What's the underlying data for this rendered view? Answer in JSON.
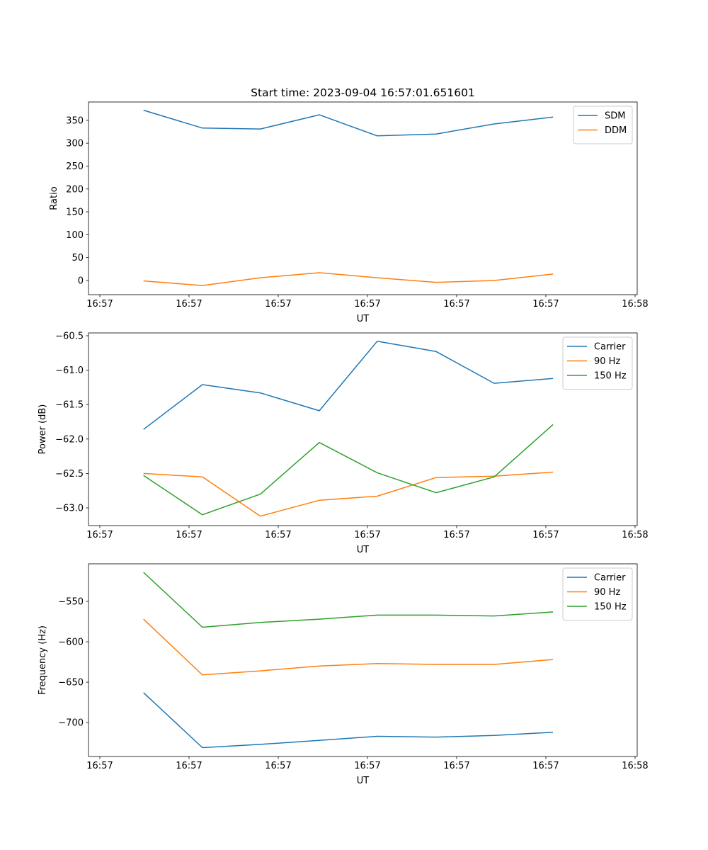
{
  "chart_data": [
    {
      "type": "line",
      "title": "Start time: 2023-09-04 16:57:01.651601",
      "xlabel": "UT",
      "ylabel": "Ratio",
      "x": [
        4.9,
        11.5,
        18.0,
        24.6,
        31.1,
        37.7,
        44.2,
        50.8
      ],
      "xlim": [
        -1.27,
        60.24
      ],
      "xticks": [
        0,
        10,
        20,
        30,
        40,
        50,
        60
      ],
      "xtick_labels": [
        "16:57",
        "16:57",
        "16:57",
        "16:57",
        "16:57",
        "16:57",
        "16:58"
      ],
      "ylim": [
        -31,
        390
      ],
      "yticks": [
        0,
        50,
        100,
        150,
        200,
        250,
        300,
        350
      ],
      "ytick_labels": [
        "0",
        "50",
        "100",
        "150",
        "200",
        "250",
        "300",
        "350"
      ],
      "legend": "top-right",
      "series": [
        {
          "name": "SDM",
          "color": "#1f77b4",
          "values": [
            372,
            333,
            331,
            362,
            316,
            320,
            342,
            357
          ]
        },
        {
          "name": "DDM",
          "color": "#ff7f0e",
          "values": [
            -1,
            -11,
            6,
            17,
            6,
            -4,
            0,
            14
          ]
        }
      ]
    },
    {
      "type": "line",
      "title": "",
      "xlabel": "UT",
      "ylabel": "Power (dB)",
      "x": [
        4.9,
        11.5,
        18.0,
        24.6,
        31.1,
        37.7,
        44.2,
        50.8
      ],
      "xlim": [
        -1.27,
        60.24
      ],
      "xticks": [
        0,
        10,
        20,
        30,
        40,
        50,
        60
      ],
      "xtick_labels": [
        "16:57",
        "16:57",
        "16:57",
        "16:57",
        "16:57",
        "16:57",
        "16:58"
      ],
      "ylim": [
        -63.257,
        -60.459
      ],
      "yticks": [
        -63.0,
        -62.5,
        -62.0,
        -61.5,
        -61.0,
        -60.5
      ],
      "ytick_labels": [
        "−63.0",
        "−62.5",
        "−62.0",
        "−61.5",
        "−61.0",
        "−60.5"
      ],
      "legend": "top-right",
      "series": [
        {
          "name": "Carrier",
          "color": "#1f77b4",
          "values": [
            -61.86,
            -61.21,
            -61.33,
            -61.59,
            -60.58,
            -60.73,
            -61.19,
            -61.12
          ]
        },
        {
          "name": "90 Hz",
          "color": "#ff7f0e",
          "values": [
            -62.5,
            -62.55,
            -63.12,
            -62.89,
            -62.83,
            -62.56,
            -62.54,
            -62.48
          ]
        },
        {
          "name": "150 Hz",
          "color": "#2ca02c",
          "values": [
            -62.53,
            -63.1,
            -62.8,
            -62.05,
            -62.49,
            -62.78,
            -62.55,
            -61.79
          ]
        }
      ]
    },
    {
      "type": "line",
      "title": "",
      "xlabel": "UT",
      "ylabel": "Frequency (Hz)",
      "x": [
        4.9,
        11.5,
        18.0,
        24.6,
        31.1,
        37.7,
        44.2,
        50.8
      ],
      "xlim": [
        -1.27,
        60.24
      ],
      "xticks": [
        0,
        10,
        20,
        30,
        40,
        50,
        60
      ],
      "xtick_labels": [
        "16:57",
        "16:57",
        "16:57",
        "16:57",
        "16:57",
        "16:57",
        "16:58"
      ],
      "ylim": [
        -742,
        -503.5
      ],
      "yticks": [
        -700,
        -650,
        -600,
        -550
      ],
      "ytick_labels": [
        "−700",
        "−650",
        "−600",
        "−550"
      ],
      "legend": "top-right",
      "series": [
        {
          "name": "Carrier",
          "color": "#1f77b4",
          "values": [
            -663,
            -731,
            -727,
            -722,
            -717,
            -718,
            -716,
            -712
          ]
        },
        {
          "name": "90 Hz",
          "color": "#ff7f0e",
          "values": [
            -572,
            -641,
            -636,
            -630,
            -627,
            -628,
            -628,
            -622
          ]
        },
        {
          "name": "150 Hz",
          "color": "#2ca02c",
          "values": [
            -514,
            -582,
            -576,
            -572,
            -567,
            -567,
            -568,
            -563
          ]
        }
      ]
    }
  ]
}
